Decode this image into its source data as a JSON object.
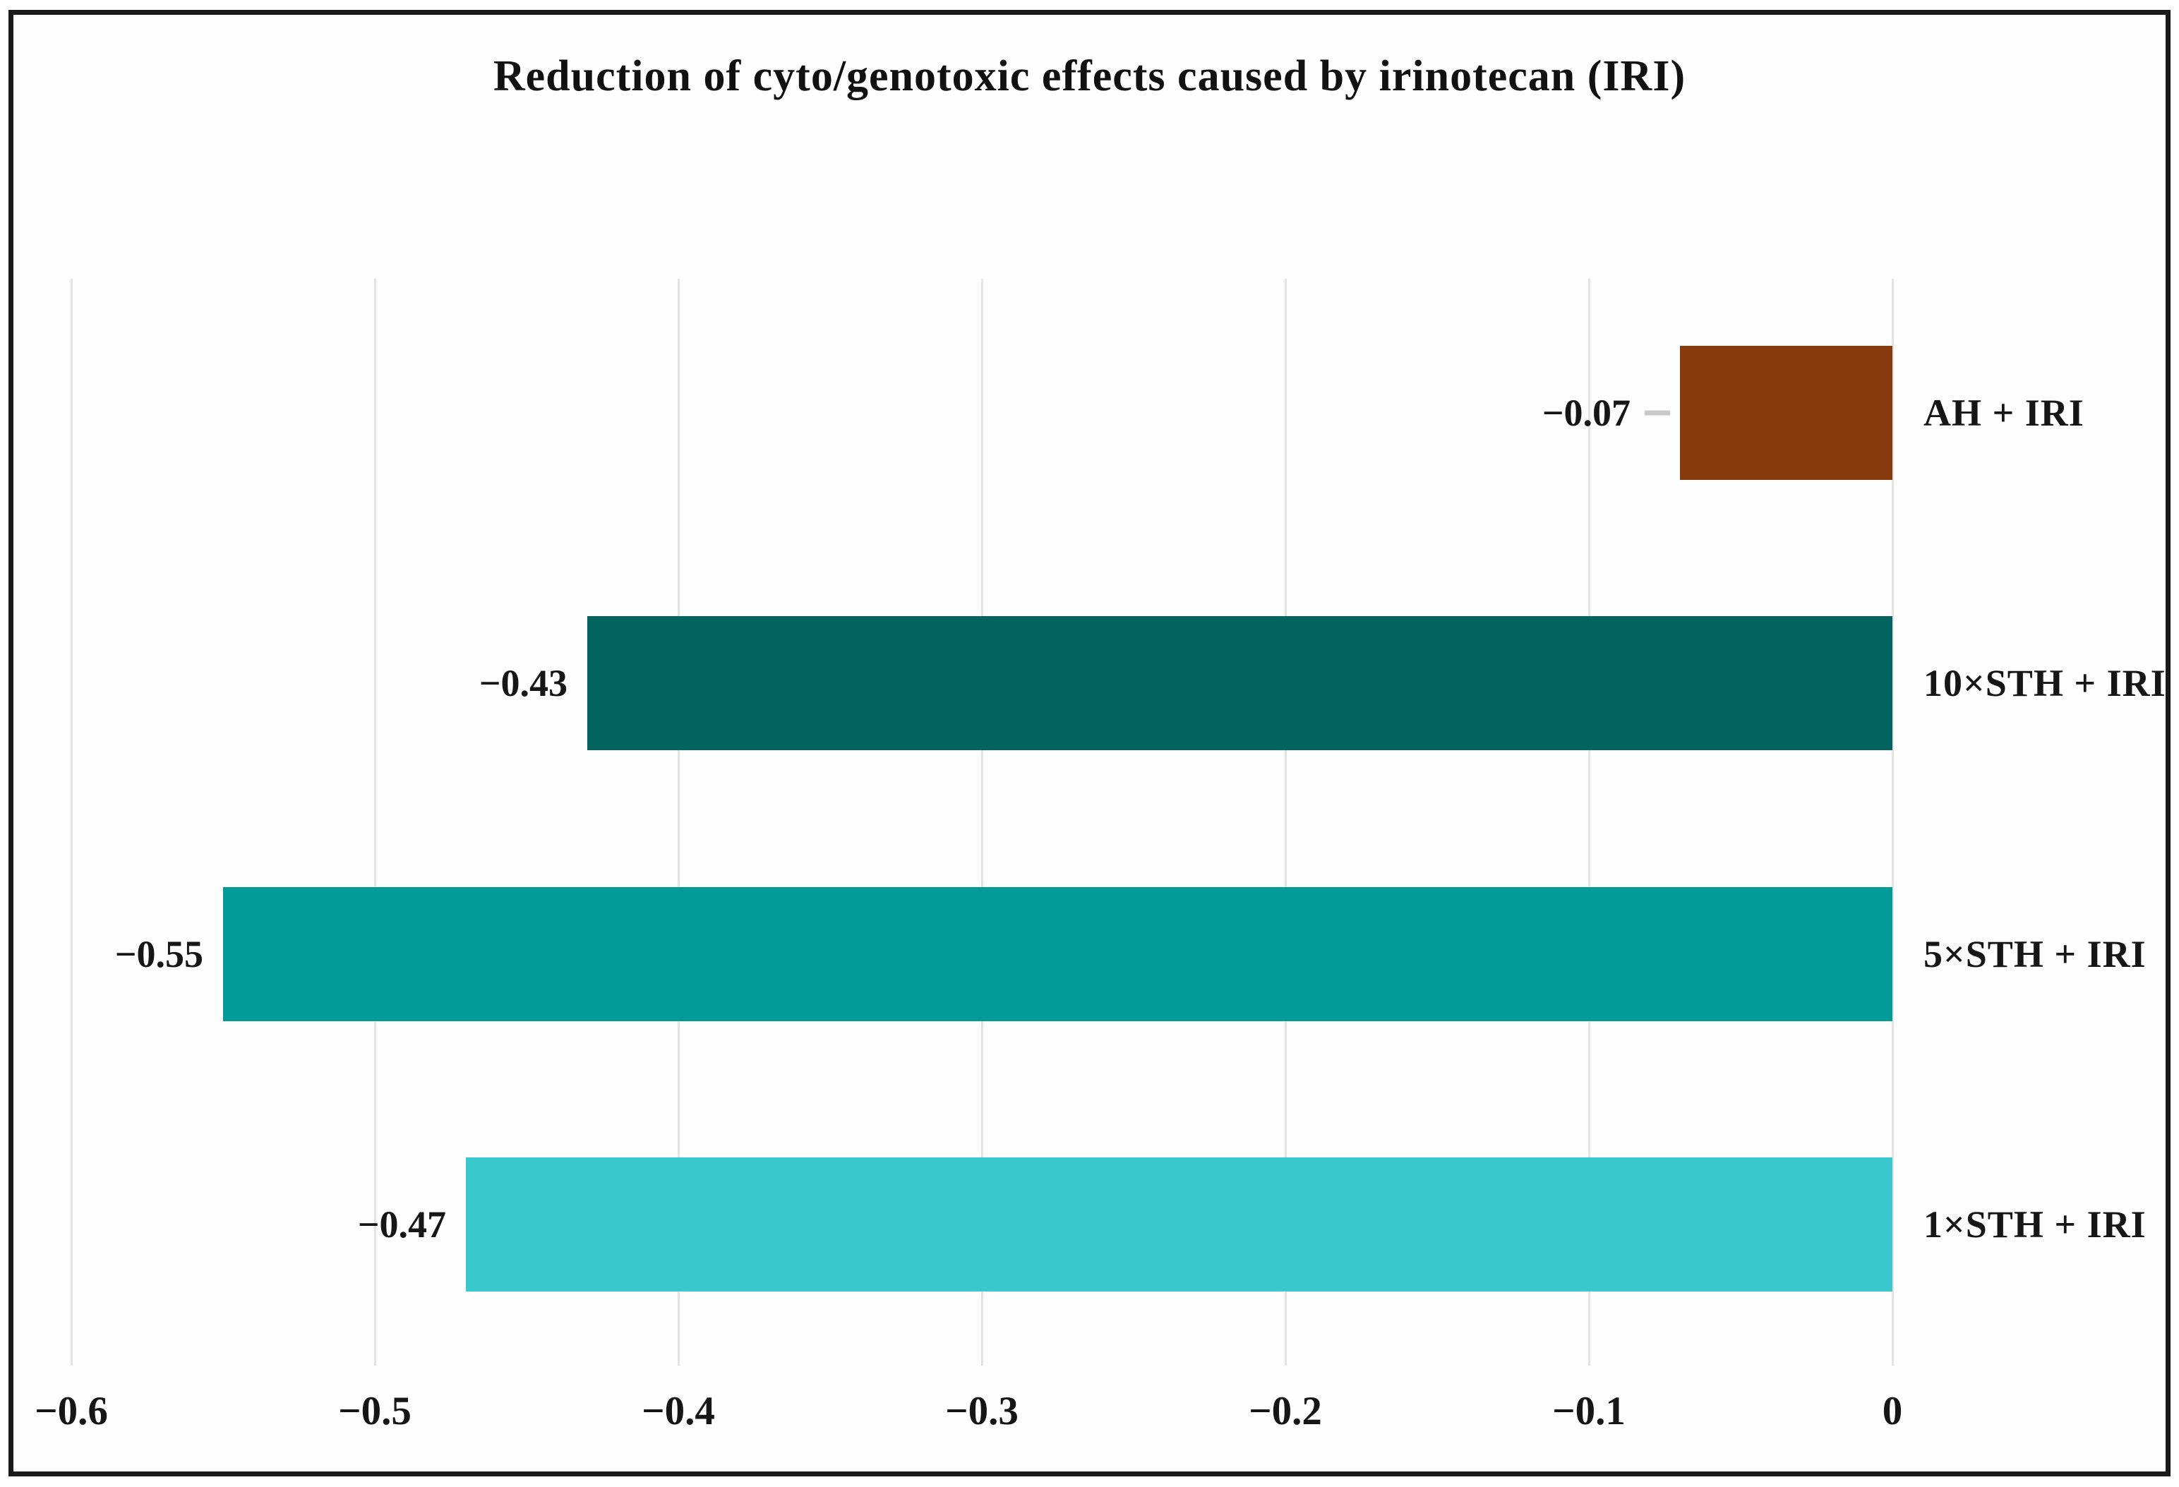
{
  "chart_data": {
    "type": "bar",
    "orientation": "horizontal",
    "title": "Reduction of cyto/genotoxic effects caused by irinotecan (IRI)",
    "categories": [
      "AH + IRI",
      "10×STH + IRI",
      "5×STH + IRI",
      "1×STH + IRI"
    ],
    "values": [
      -0.07,
      -0.43,
      -0.55,
      -0.47
    ],
    "value_labels": [
      "−0.07",
      "−0.43",
      "−0.55",
      "−0.47"
    ],
    "bar_colors": [
      "#853B0D",
      "#03635F",
      "#049A98",
      "#39C8CC"
    ],
    "leader_dash": [
      true,
      false,
      false,
      false
    ],
    "xlim": [
      -0.6,
      0
    ],
    "x_ticks": [
      -0.6,
      -0.5,
      -0.4,
      -0.3,
      -0.2,
      -0.1,
      0
    ],
    "x_tick_labels": [
      "−0.6",
      "−0.5",
      "−0.4",
      "−0.3",
      "−0.2",
      "−0.1",
      "0"
    ],
    "grid": "vertical",
    "gridline_color": "#e4e4e4",
    "frame_color": "#1a1a1a",
    "legend": "none"
  }
}
